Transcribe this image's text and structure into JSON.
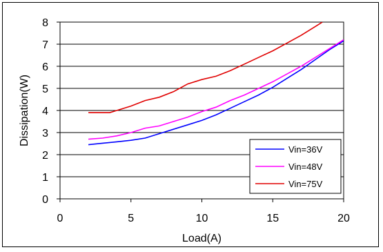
{
  "chart_data": {
    "type": "line",
    "xlabel": "Load(A)",
    "ylabel": "Dissipation(W)",
    "xlim": [
      0,
      20
    ],
    "ylim": [
      0,
      8
    ],
    "xticks": [
      0,
      5,
      10,
      15,
      20
    ],
    "yticks": [
      0,
      1,
      2,
      3,
      4,
      5,
      6,
      7,
      8
    ],
    "grid": "horizontal",
    "legend_position": "bottom-right",
    "series": [
      {
        "name": "Vin=36V",
        "color": "#0000ff",
        "x": [
          2,
          3,
          4,
          5,
          6,
          7,
          8,
          9,
          10,
          11,
          12,
          13,
          14,
          15,
          16,
          17,
          18,
          19,
          20
        ],
        "y": [
          2.45,
          2.52,
          2.58,
          2.65,
          2.75,
          2.95,
          3.15,
          3.35,
          3.55,
          3.8,
          4.1,
          4.4,
          4.7,
          5.05,
          5.45,
          5.85,
          6.3,
          6.75,
          7.15
        ]
      },
      {
        "name": "Vin=48V",
        "color": "#ff00ff",
        "x": [
          2,
          3,
          4,
          5,
          6,
          7,
          8,
          9,
          10,
          11,
          12,
          13,
          14,
          15,
          16,
          17,
          18,
          19,
          20
        ],
        "y": [
          2.7,
          2.75,
          2.85,
          3.0,
          3.2,
          3.3,
          3.5,
          3.7,
          3.95,
          4.15,
          4.45,
          4.7,
          5.0,
          5.3,
          5.65,
          6.0,
          6.4,
          6.8,
          7.2
        ]
      },
      {
        "name": "Vin=75V",
        "color": "#e00000",
        "x": [
          2,
          3,
          3.5,
          4,
          5,
          6,
          7,
          8,
          9,
          10,
          11,
          12,
          13,
          14,
          15,
          16,
          17,
          18,
          18.5
        ],
        "y": [
          3.9,
          3.9,
          3.9,
          4.0,
          4.2,
          4.45,
          4.6,
          4.85,
          5.2,
          5.4,
          5.55,
          5.8,
          6.1,
          6.4,
          6.7,
          7.05,
          7.4,
          7.8,
          8.0
        ]
      }
    ]
  }
}
